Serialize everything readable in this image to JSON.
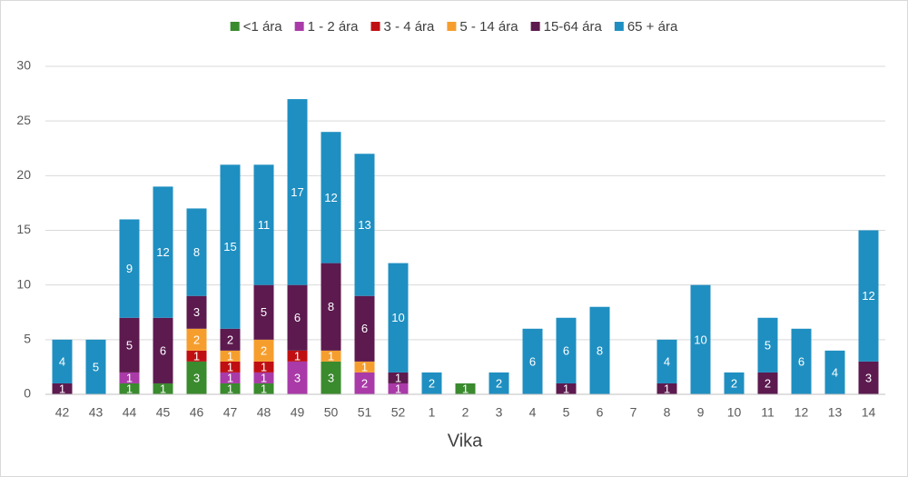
{
  "chart_data": {
    "type": "bar",
    "stacked": true,
    "x_label": "Vika",
    "categories": [
      "42",
      "43",
      "44",
      "45",
      "46",
      "47",
      "48",
      "49",
      "50",
      "51",
      "52",
      "1",
      "2",
      "3",
      "4",
      "5",
      "6",
      "7",
      "8",
      "9",
      "10",
      "11",
      "12",
      "13",
      "14"
    ],
    "series": [
      {
        "name": "<1 ára",
        "color": "#3a8a2e",
        "values": [
          null,
          null,
          1,
          1,
          3,
          1,
          1,
          null,
          3,
          null,
          null,
          null,
          1,
          null,
          null,
          null,
          null,
          null,
          null,
          null,
          null,
          null,
          null,
          null,
          null
        ]
      },
      {
        "name": "1 - 2 ára",
        "color": "#a93aa8",
        "values": [
          null,
          null,
          1,
          null,
          null,
          1,
          1,
          3,
          null,
          2,
          1,
          null,
          null,
          null,
          null,
          null,
          null,
          null,
          null,
          null,
          null,
          null,
          null,
          null,
          null
        ]
      },
      {
        "name": "3 - 4 ára",
        "color": "#c00f12",
        "values": [
          null,
          null,
          null,
          null,
          1,
          1,
          1,
          1,
          null,
          null,
          null,
          null,
          null,
          null,
          null,
          null,
          null,
          null,
          null,
          null,
          null,
          null,
          null,
          null,
          null
        ]
      },
      {
        "name": "5 - 14 ára",
        "color": "#f59e2e",
        "values": [
          null,
          null,
          null,
          null,
          2,
          1,
          2,
          null,
          1,
          1,
          null,
          null,
          null,
          null,
          null,
          null,
          null,
          null,
          null,
          null,
          null,
          null,
          null,
          null,
          null
        ]
      },
      {
        "name": "15-64 ára",
        "color": "#5c1a4f",
        "values": [
          1,
          null,
          5,
          6,
          3,
          2,
          5,
          6,
          8,
          6,
          1,
          null,
          null,
          null,
          null,
          1,
          null,
          null,
          1,
          null,
          null,
          2,
          null,
          null,
          3
        ]
      },
      {
        "name": "65 + ára",
        "color": "#1f8fc1",
        "values": [
          4,
          5,
          9,
          12,
          8,
          15,
          11,
          17,
          12,
          13,
          10,
          2,
          null,
          2,
          6,
          6,
          8,
          null,
          4,
          10,
          2,
          5,
          6,
          4,
          12
        ]
      }
    ],
    "ylim": [
      0,
      30
    ],
    "yticks": [
      0,
      5,
      10,
      15,
      20,
      25,
      30
    ],
    "grid": true,
    "legend": "top"
  }
}
